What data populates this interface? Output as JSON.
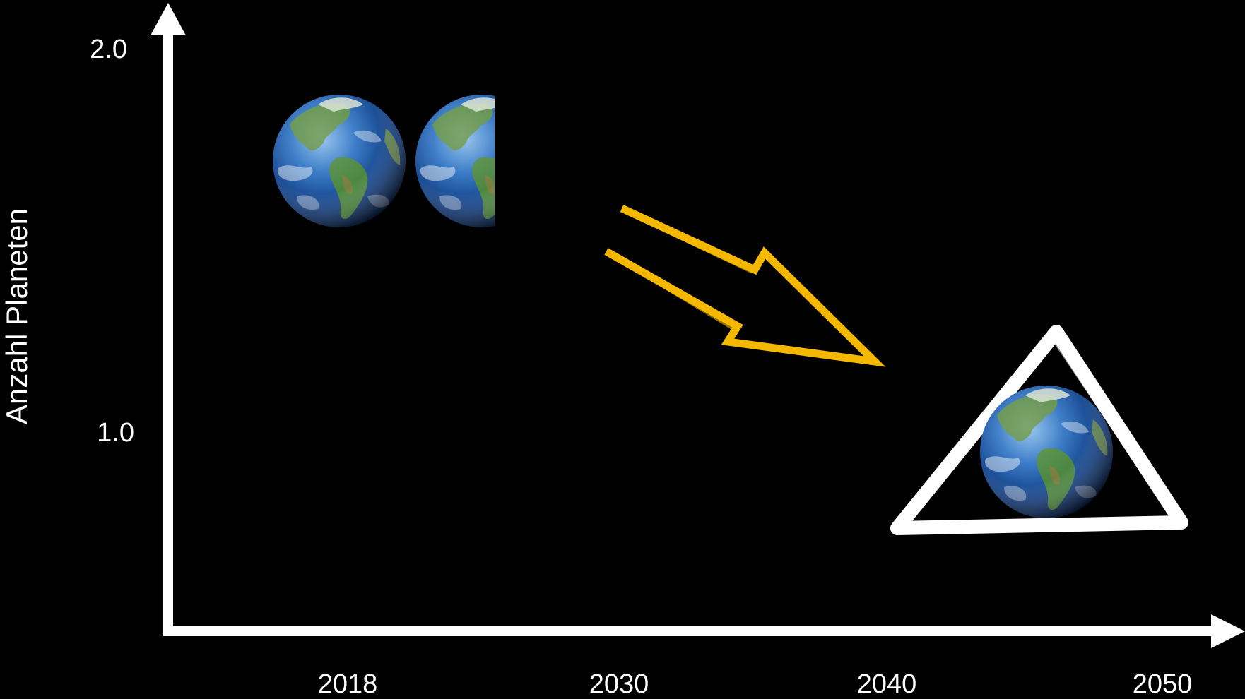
{
  "chart_data": {
    "type": "scatter",
    "title": "",
    "xlabel": "",
    "ylabel": "Anzahl Planeten",
    "x_ticks": [
      "2018",
      "2030",
      "2040",
      "2050"
    ],
    "y_ticks": [
      "1.0",
      "2.0"
    ],
    "ylim": [
      0.5,
      2.0
    ],
    "grid": false,
    "points": [
      {
        "x": 2018,
        "y": 1.7,
        "marker": "earth-pair",
        "earths": 1.6
      },
      {
        "x": 2050,
        "y": 0.9,
        "marker": "earth-in-triangle",
        "earths": 1.0
      }
    ],
    "annotations": [
      {
        "type": "arrow",
        "from": 2030,
        "to": 2040,
        "direction": "down-right",
        "color": "#F5B800"
      }
    ]
  },
  "colors": {
    "background": "#000000",
    "axis": "#ffffff",
    "arrow": "#F5B800",
    "triangle": "#ffffff",
    "ocean": "#1f5fae",
    "land": "#4f8a3c"
  }
}
